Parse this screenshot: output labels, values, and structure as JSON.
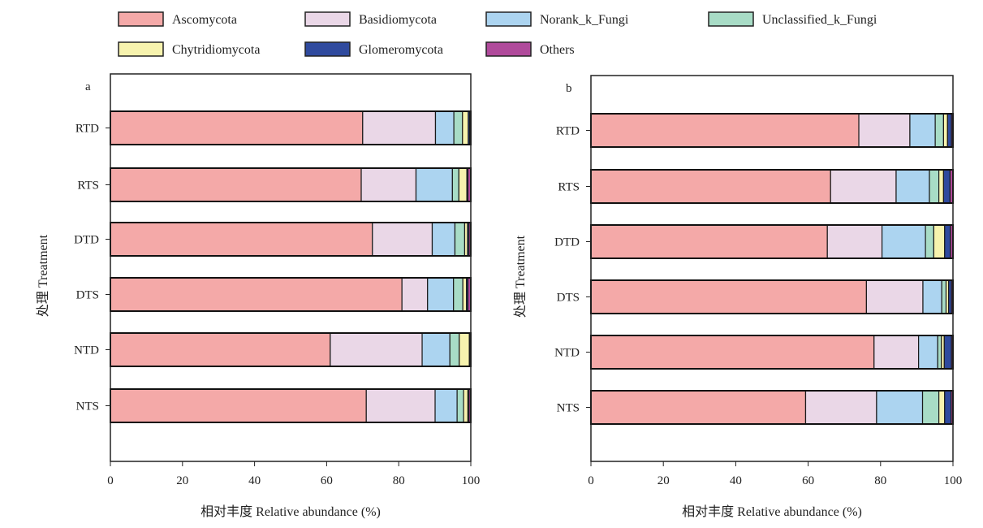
{
  "legend": [
    {
      "name": "Ascomycota",
      "color": "#f4a9a8"
    },
    {
      "name": "Basidiomycota",
      "color": "#ead7e7"
    },
    {
      "name": "Norank_k_Fungi",
      "color": "#acd4f0"
    },
    {
      "name": "Unclassified_k_Fungi",
      "color": "#a8dcc6"
    },
    {
      "name": "Chytridiomycota",
      "color": "#f7f3ae"
    },
    {
      "name": "Glomeromycota",
      "color": "#2f4a9e"
    },
    {
      "name": "Others",
      "color": "#b04a9b"
    }
  ],
  "chart_data": [
    {
      "panel": "a",
      "type": "bar",
      "orientation": "horizontal",
      "stacked": true,
      "categories": [
        "RTD",
        "RTS",
        "DTD",
        "DTS",
        "NTD",
        "NTS"
      ],
      "series": [
        {
          "name": "Ascomycota",
          "values": [
            70.0,
            69.6,
            72.7,
            80.9,
            61.0,
            71.0
          ]
        },
        {
          "name": "Basidiomycota",
          "values": [
            20.2,
            15.2,
            16.6,
            7.1,
            25.5,
            19.1
          ]
        },
        {
          "name": "Norank_k_Fungi",
          "values": [
            5.1,
            10.1,
            6.3,
            7.2,
            7.7,
            6.1
          ]
        },
        {
          "name": "Unclassified_k_Fungi",
          "values": [
            2.4,
            1.8,
            2.7,
            2.6,
            2.6,
            1.8
          ]
        },
        {
          "name": "Chytridiomycota",
          "values": [
            1.6,
            2.2,
            0.8,
            1.0,
            2.8,
            1.2
          ]
        },
        {
          "name": "Glomeromycota",
          "values": [
            0.4,
            0.3,
            0.4,
            0.4,
            0.2,
            0.3
          ]
        },
        {
          "name": "Others",
          "values": [
            0.3,
            0.8,
            0.5,
            0.8,
            0.2,
            0.5
          ]
        }
      ],
      "xlim": [
        0,
        100
      ],
      "xticks": [
        0,
        20,
        40,
        60,
        80,
        100
      ],
      "xlabel": "相对丰度 Relative abundance (%)",
      "ylabel": "处理 Treatment",
      "grid": false
    },
    {
      "panel": "b",
      "type": "bar",
      "orientation": "horizontal",
      "stacked": true,
      "categories": [
        "RTD",
        "RTS",
        "DTD",
        "DTS",
        "NTD",
        "NTS"
      ],
      "series": [
        {
          "name": "Ascomycota",
          "values": [
            74.0,
            66.2,
            65.3,
            76.1,
            78.2,
            59.3
          ]
        },
        {
          "name": "Basidiomycota",
          "values": [
            14.1,
            18.1,
            15.1,
            15.6,
            12.3,
            19.6
          ]
        },
        {
          "name": "Norank_k_Fungi",
          "values": [
            7.0,
            9.2,
            12.0,
            5.2,
            5.3,
            12.7
          ]
        },
        {
          "name": "Unclassified_k_Fungi",
          "values": [
            2.3,
            2.6,
            2.3,
            1.2,
            1.0,
            4.5
          ]
        },
        {
          "name": "Chytridiomycota",
          "values": [
            1.1,
            1.3,
            3.0,
            0.7,
            0.8,
            1.6
          ]
        },
        {
          "name": "Glomeromycota",
          "values": [
            1.1,
            1.8,
            1.6,
            0.8,
            2.0,
            1.8
          ]
        },
        {
          "name": "Others",
          "values": [
            0.4,
            0.8,
            0.7,
            0.4,
            0.4,
            0.5
          ]
        }
      ],
      "xlim": [
        0,
        100
      ],
      "xticks": [
        0,
        20,
        40,
        60,
        80,
        100
      ],
      "xlabel": "相对丰度 Relative abundance (%)",
      "ylabel": "处理 Treatment",
      "grid": false
    }
  ]
}
